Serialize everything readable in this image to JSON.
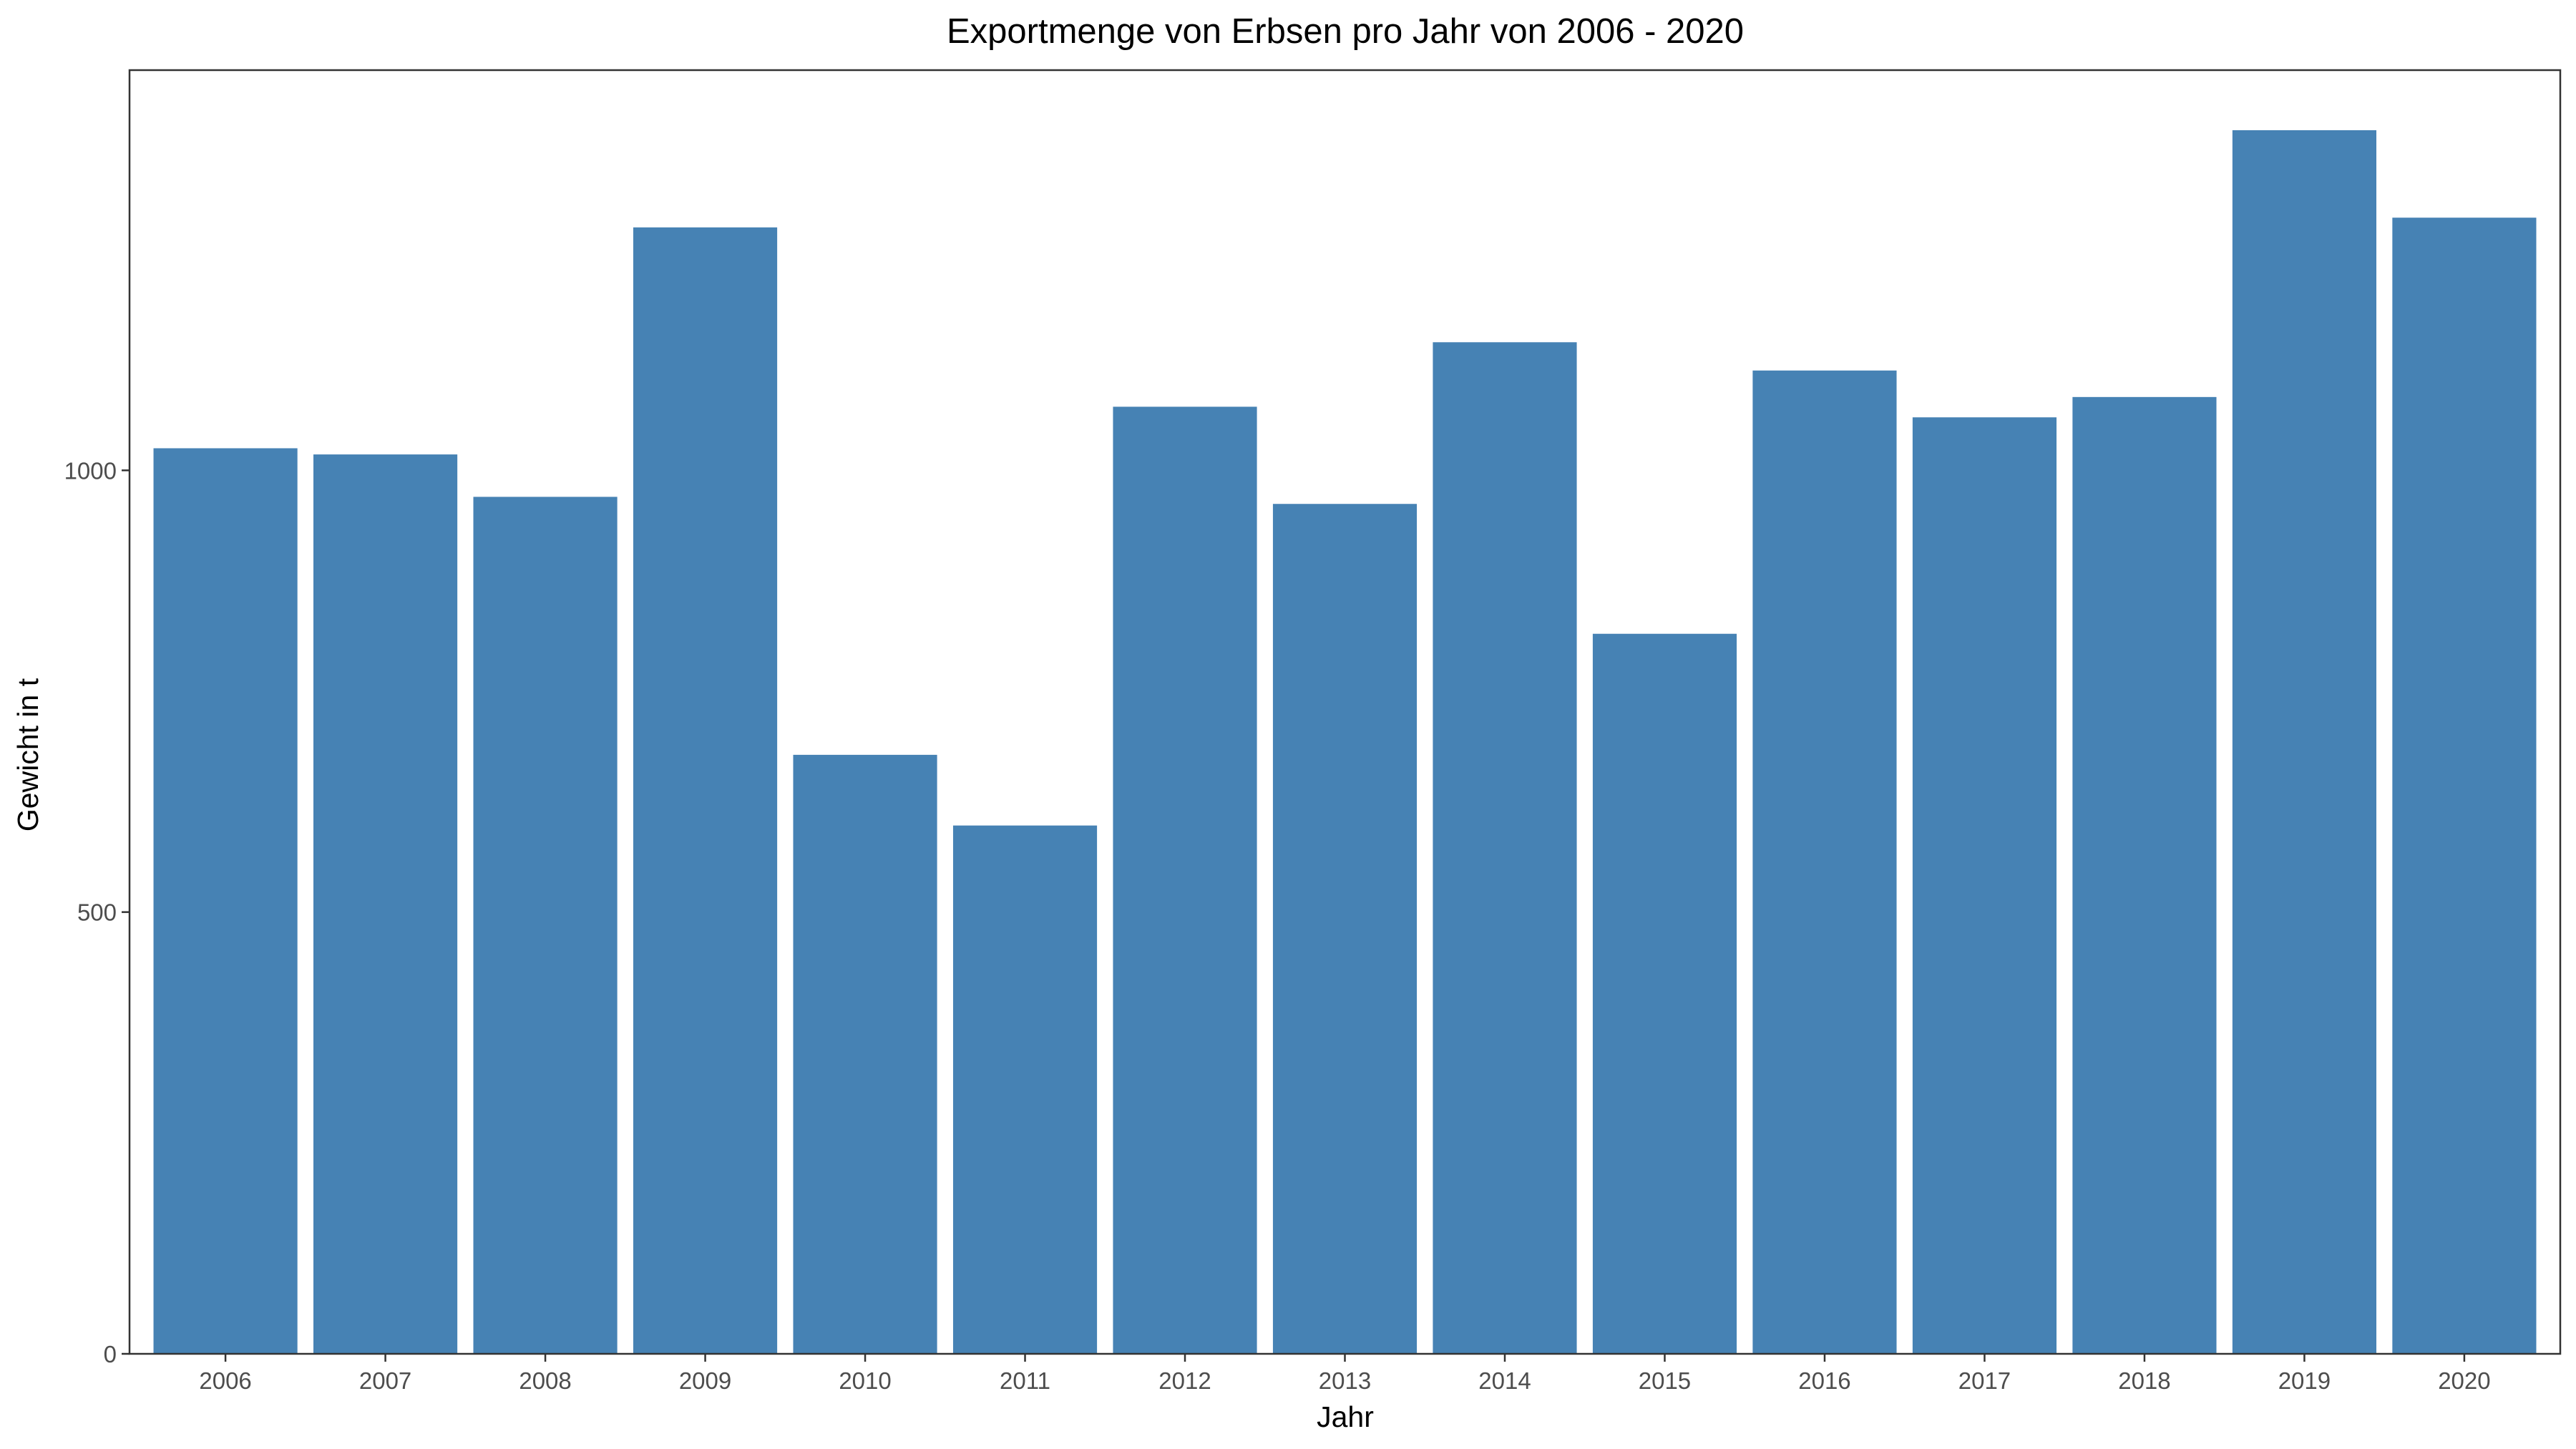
{
  "chart_data": {
    "type": "bar",
    "title": "Exportmenge von Erbsen pro Jahr von 2006 - 2020",
    "xlabel": "Jahr",
    "ylabel": "Gewicht in t",
    "categories": [
      "2006",
      "2007",
      "2008",
      "2009",
      "2010",
      "2011",
      "2012",
      "2013",
      "2014",
      "2015",
      "2016",
      "2017",
      "2018",
      "2019",
      "2020"
    ],
    "values": [
      1025,
      1018,
      970,
      1275,
      678,
      598,
      1072,
      962,
      1145,
      815,
      1113,
      1060,
      1083,
      1385,
      1286
    ],
    "ylim": [
      0,
      1453
    ],
    "yticks": [
      0,
      500,
      1000
    ],
    "grid": false,
    "bar_color": "#4682b4",
    "panel_border_color": "#333333"
  }
}
